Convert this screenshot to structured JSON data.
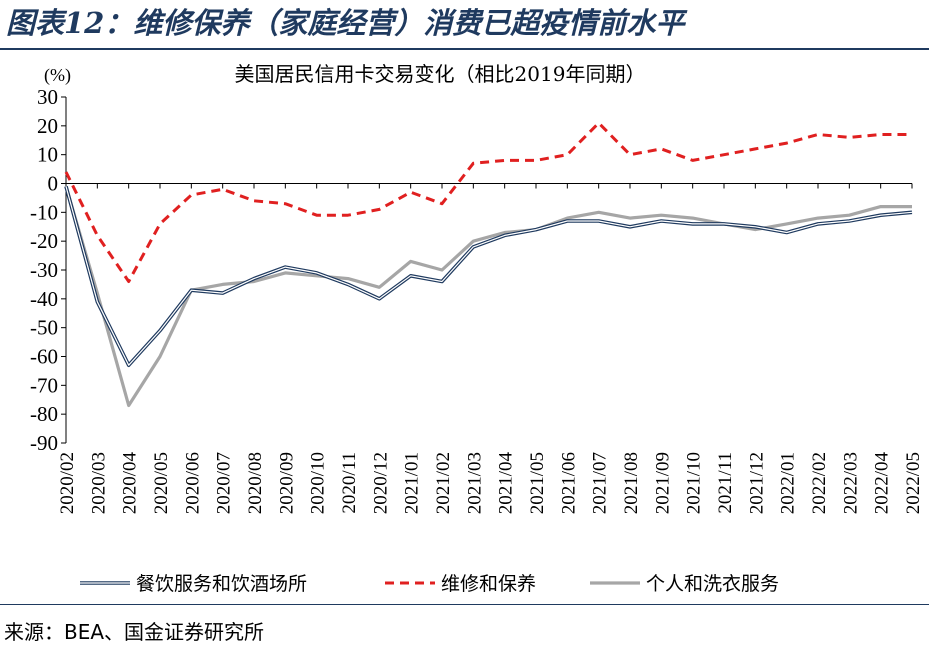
{
  "header": {
    "figure_title": "图表12：维修保养（家庭经营）消费已超疫情前水平"
  },
  "footer": {
    "source": "来源：BEA、国金证券研究所"
  },
  "colors": {
    "title": "#1f3a5f",
    "series_dining": "#1f3a5f",
    "series_repair": "#e02020",
    "series_personal": "#a6a6a6"
  },
  "chart_data": {
    "type": "line",
    "title": "美国居民信用卡交易变化（相比2019年同期）",
    "ylabel": "(%)",
    "xlabel": "",
    "ylim": [
      -90,
      30
    ],
    "yticks": [
      30,
      20,
      10,
      0,
      -10,
      -20,
      -30,
      -40,
      -50,
      -60,
      -70,
      -80,
      -90
    ],
    "categories": [
      "2020/02",
      "2020/03",
      "2020/04",
      "2020/05",
      "2020/06",
      "2020/07",
      "2020/08",
      "2020/09",
      "2020/10",
      "2020/11",
      "2020/12",
      "2021/01",
      "2021/02",
      "2021/03",
      "2021/04",
      "2021/05",
      "2021/06",
      "2021/07",
      "2021/08",
      "2021/09",
      "2021/10",
      "2021/11",
      "2021/12",
      "2022/01",
      "2022/02",
      "2022/03",
      "2022/04",
      "2022/05"
    ],
    "legend_position": "bottom",
    "series": [
      {
        "name": "餐饮服务和饮酒场所",
        "style": "double-line",
        "color_key": "series_dining",
        "values": [
          -1,
          -41,
          -63,
          -51,
          -37,
          -38,
          -33,
          -29,
          -31,
          -35,
          -40,
          -32,
          -34,
          -22,
          -18,
          -16,
          -13,
          -13,
          -15,
          -13,
          -14,
          -14,
          -15,
          -17,
          -14,
          -13,
          -11,
          -10
        ]
      },
      {
        "name": "维修和保养",
        "style": "dashed",
        "color_key": "series_repair",
        "values": [
          4,
          -18,
          -34,
          -14,
          -4,
          -2,
          -6,
          -7,
          -11,
          -11,
          -9,
          -3,
          -7,
          7,
          8,
          8,
          10,
          21,
          10,
          12,
          8,
          10,
          12,
          14,
          17,
          16,
          17,
          17
        ]
      },
      {
        "name": "个人和洗衣服务",
        "style": "solid",
        "color_key": "series_personal",
        "values": [
          -1,
          -38,
          -77,
          -60,
          -37,
          -35,
          -34,
          -31,
          -32,
          -33,
          -36,
          -27,
          -30,
          -20,
          -17,
          -16,
          -12,
          -10,
          -12,
          -11,
          -12,
          -14,
          -16,
          -14,
          -12,
          -11,
          -8,
          -8
        ]
      }
    ]
  }
}
